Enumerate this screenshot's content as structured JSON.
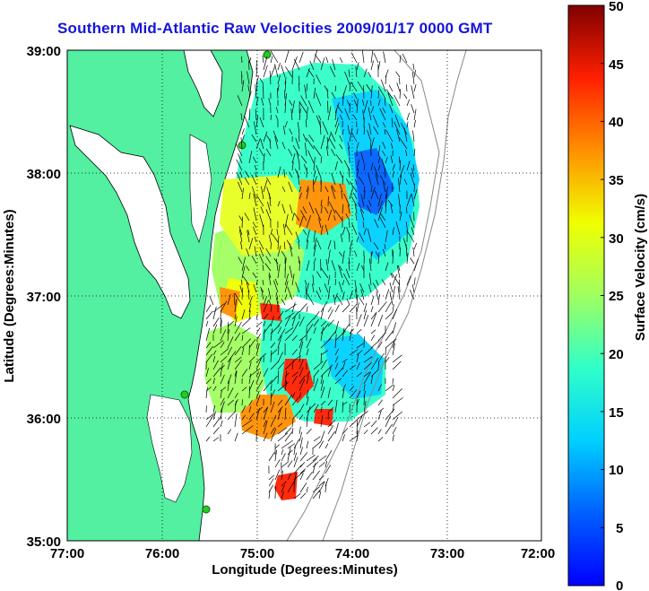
{
  "title": "Southern Mid-Atlantic Raw Velocities 2009/01/17 0000 GMT",
  "axes": {
    "xlabel": "Longitude (Degrees:Minutes)",
    "ylabel": "Latitude (Degrees:Minutes)",
    "x_ticks": [
      "77:00",
      "76:00",
      "75:00",
      "74:00",
      "73:00",
      "72:00"
    ],
    "y_ticks": [
      "39:00",
      "38:00",
      "37:00",
      "36:00",
      "35:00"
    ]
  },
  "colorbar": {
    "label": "Surface Velocity (cm/s)",
    "ticks": [
      "50",
      "45",
      "40",
      "35",
      "30",
      "25",
      "20",
      "15",
      "10",
      "5",
      "0"
    ],
    "range": [
      0,
      50
    ]
  },
  "colors": {
    "land": "#52f0a0",
    "water": "#ffffff",
    "title": "#1414dc",
    "station": "#22cc22"
  },
  "chart_data": {
    "type": "heatmap",
    "title": "Southern Mid-Atlantic Raw Velocities 2009/01/17 0000 GMT",
    "xlabel": "Longitude (Degrees:Minutes)",
    "ylabel": "Latitude (Degrees:Minutes)",
    "xlim": [
      -77,
      -72
    ],
    "ylim": [
      35,
      39
    ],
    "grid": true,
    "colorbar_label": "Surface Velocity (cm/s)",
    "colorbar_range": [
      0,
      50
    ]
  }
}
